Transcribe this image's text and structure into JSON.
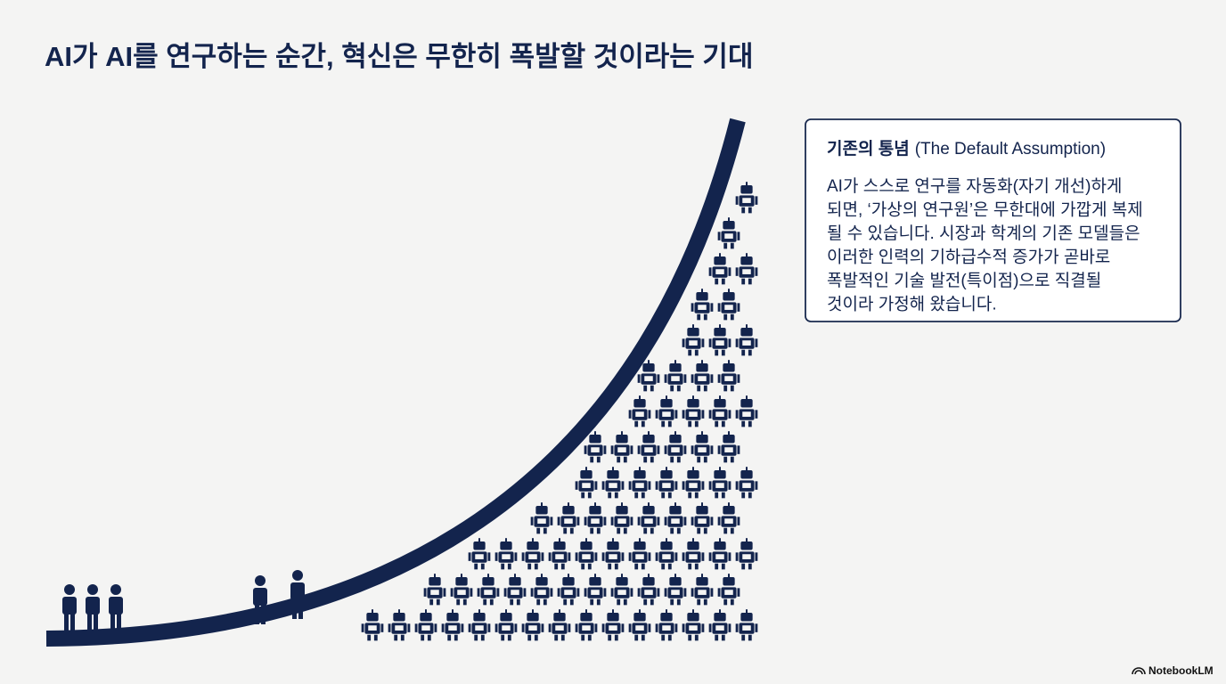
{
  "title": "AI가 AI를 연구하는 순간, 혁신은 무한히 폭발할 것이라는 기대",
  "box": {
    "heading": "기존의 통념",
    "heading_en": "(The Default Assumption)",
    "lines": [
      "AI가 스스로 연구를 자동화(자기 개선)하게",
      "되면, ‘가상의 연구원’은 무한대에 가깝게 복제",
      "될 수 있습니다. 시장과 학계의 기존 모델들은",
      "이러한 인력의 기하급수적 증가가 곧바로",
      "폭발적인 기술 발전(특이점)으로 직결될",
      "것이라 가정해 왔습니다."
    ]
  },
  "footer": "NotebookLM"
}
